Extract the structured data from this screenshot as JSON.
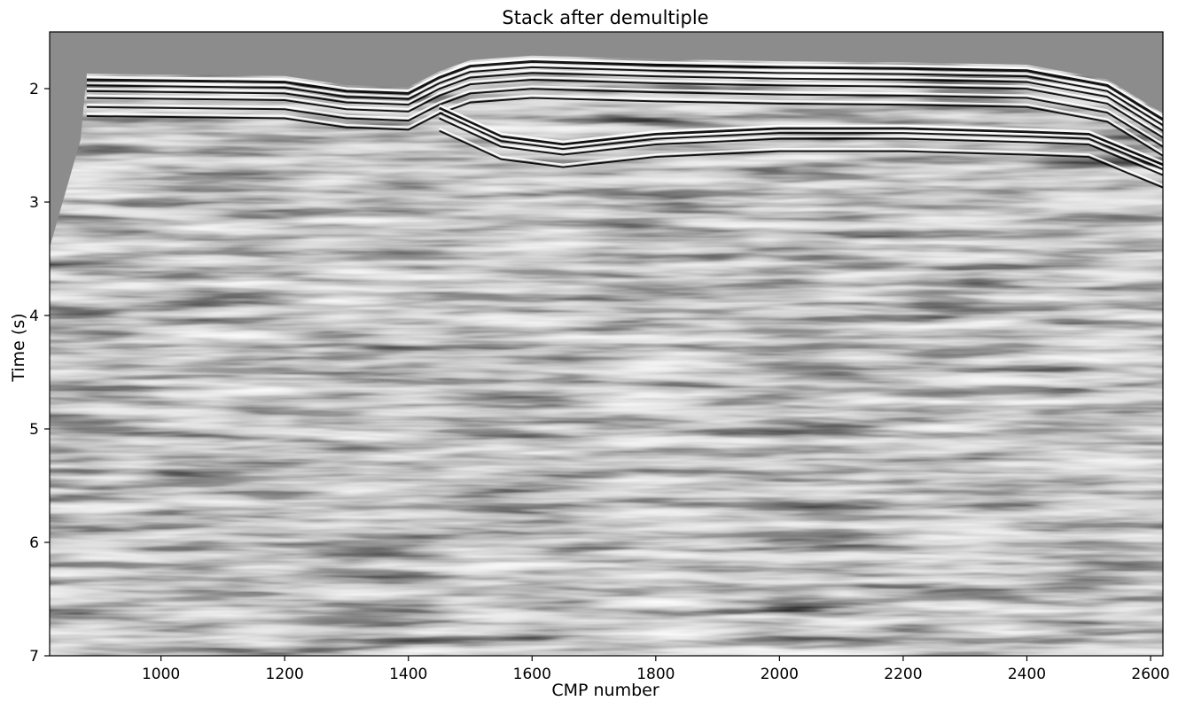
{
  "chart_data": {
    "type": "heatmap",
    "title": "Stack after demultiple",
    "xlabel": "CMP number",
    "ylabel": "Time (s)",
    "xlim": [
      820,
      2620
    ],
    "ylim": [
      7,
      1.5
    ],
    "y_axis_inverted": true,
    "colormap": "grayscale (seismic amplitude)",
    "grid": false,
    "x_ticks": [
      1000,
      1200,
      1400,
      1600,
      1800,
      2000,
      2200,
      2400,
      2600
    ],
    "y_ticks": [
      2,
      3,
      4,
      5,
      6,
      7
    ],
    "x_tick_labels": [
      "1000",
      "1200",
      "1400",
      "1600",
      "1800",
      "2000",
      "2200",
      "2400",
      "2600"
    ],
    "y_tick_labels": [
      "2",
      "3",
      "4",
      "5",
      "6",
      "7"
    ],
    "seafloor_horizon": [
      {
        "cmp": 880,
        "time": 1.9
      },
      {
        "cmp": 1200,
        "time": 1.92
      },
      {
        "cmp": 1300,
        "time": 2.0
      },
      {
        "cmp": 1400,
        "time": 2.02
      },
      {
        "cmp": 1450,
        "time": 1.88
      },
      {
        "cmp": 1500,
        "time": 1.78
      },
      {
        "cmp": 1600,
        "time": 1.74
      },
      {
        "cmp": 1800,
        "time": 1.77
      },
      {
        "cmp": 2000,
        "time": 1.79
      },
      {
        "cmp": 2200,
        "time": 1.8
      },
      {
        "cmp": 2400,
        "time": 1.82
      },
      {
        "cmp": 2530,
        "time": 1.95
      },
      {
        "cmp": 2620,
        "time": 2.25
      }
    ],
    "strong_reflector": [
      {
        "cmp": 1450,
        "time": 2.15
      },
      {
        "cmp": 1550,
        "time": 2.4
      },
      {
        "cmp": 1650,
        "time": 2.47
      },
      {
        "cmp": 1800,
        "time": 2.38
      },
      {
        "cmp": 2000,
        "time": 2.33
      },
      {
        "cmp": 2200,
        "time": 2.33
      },
      {
        "cmp": 2400,
        "time": 2.36
      },
      {
        "cmp": 2500,
        "time": 2.38
      },
      {
        "cmp": 2620,
        "time": 2.65
      }
    ],
    "colors": {
      "background_gray": "#8c8c8c",
      "peak": "#ffffff",
      "trough": "#000000",
      "frame": "#000000"
    }
  }
}
